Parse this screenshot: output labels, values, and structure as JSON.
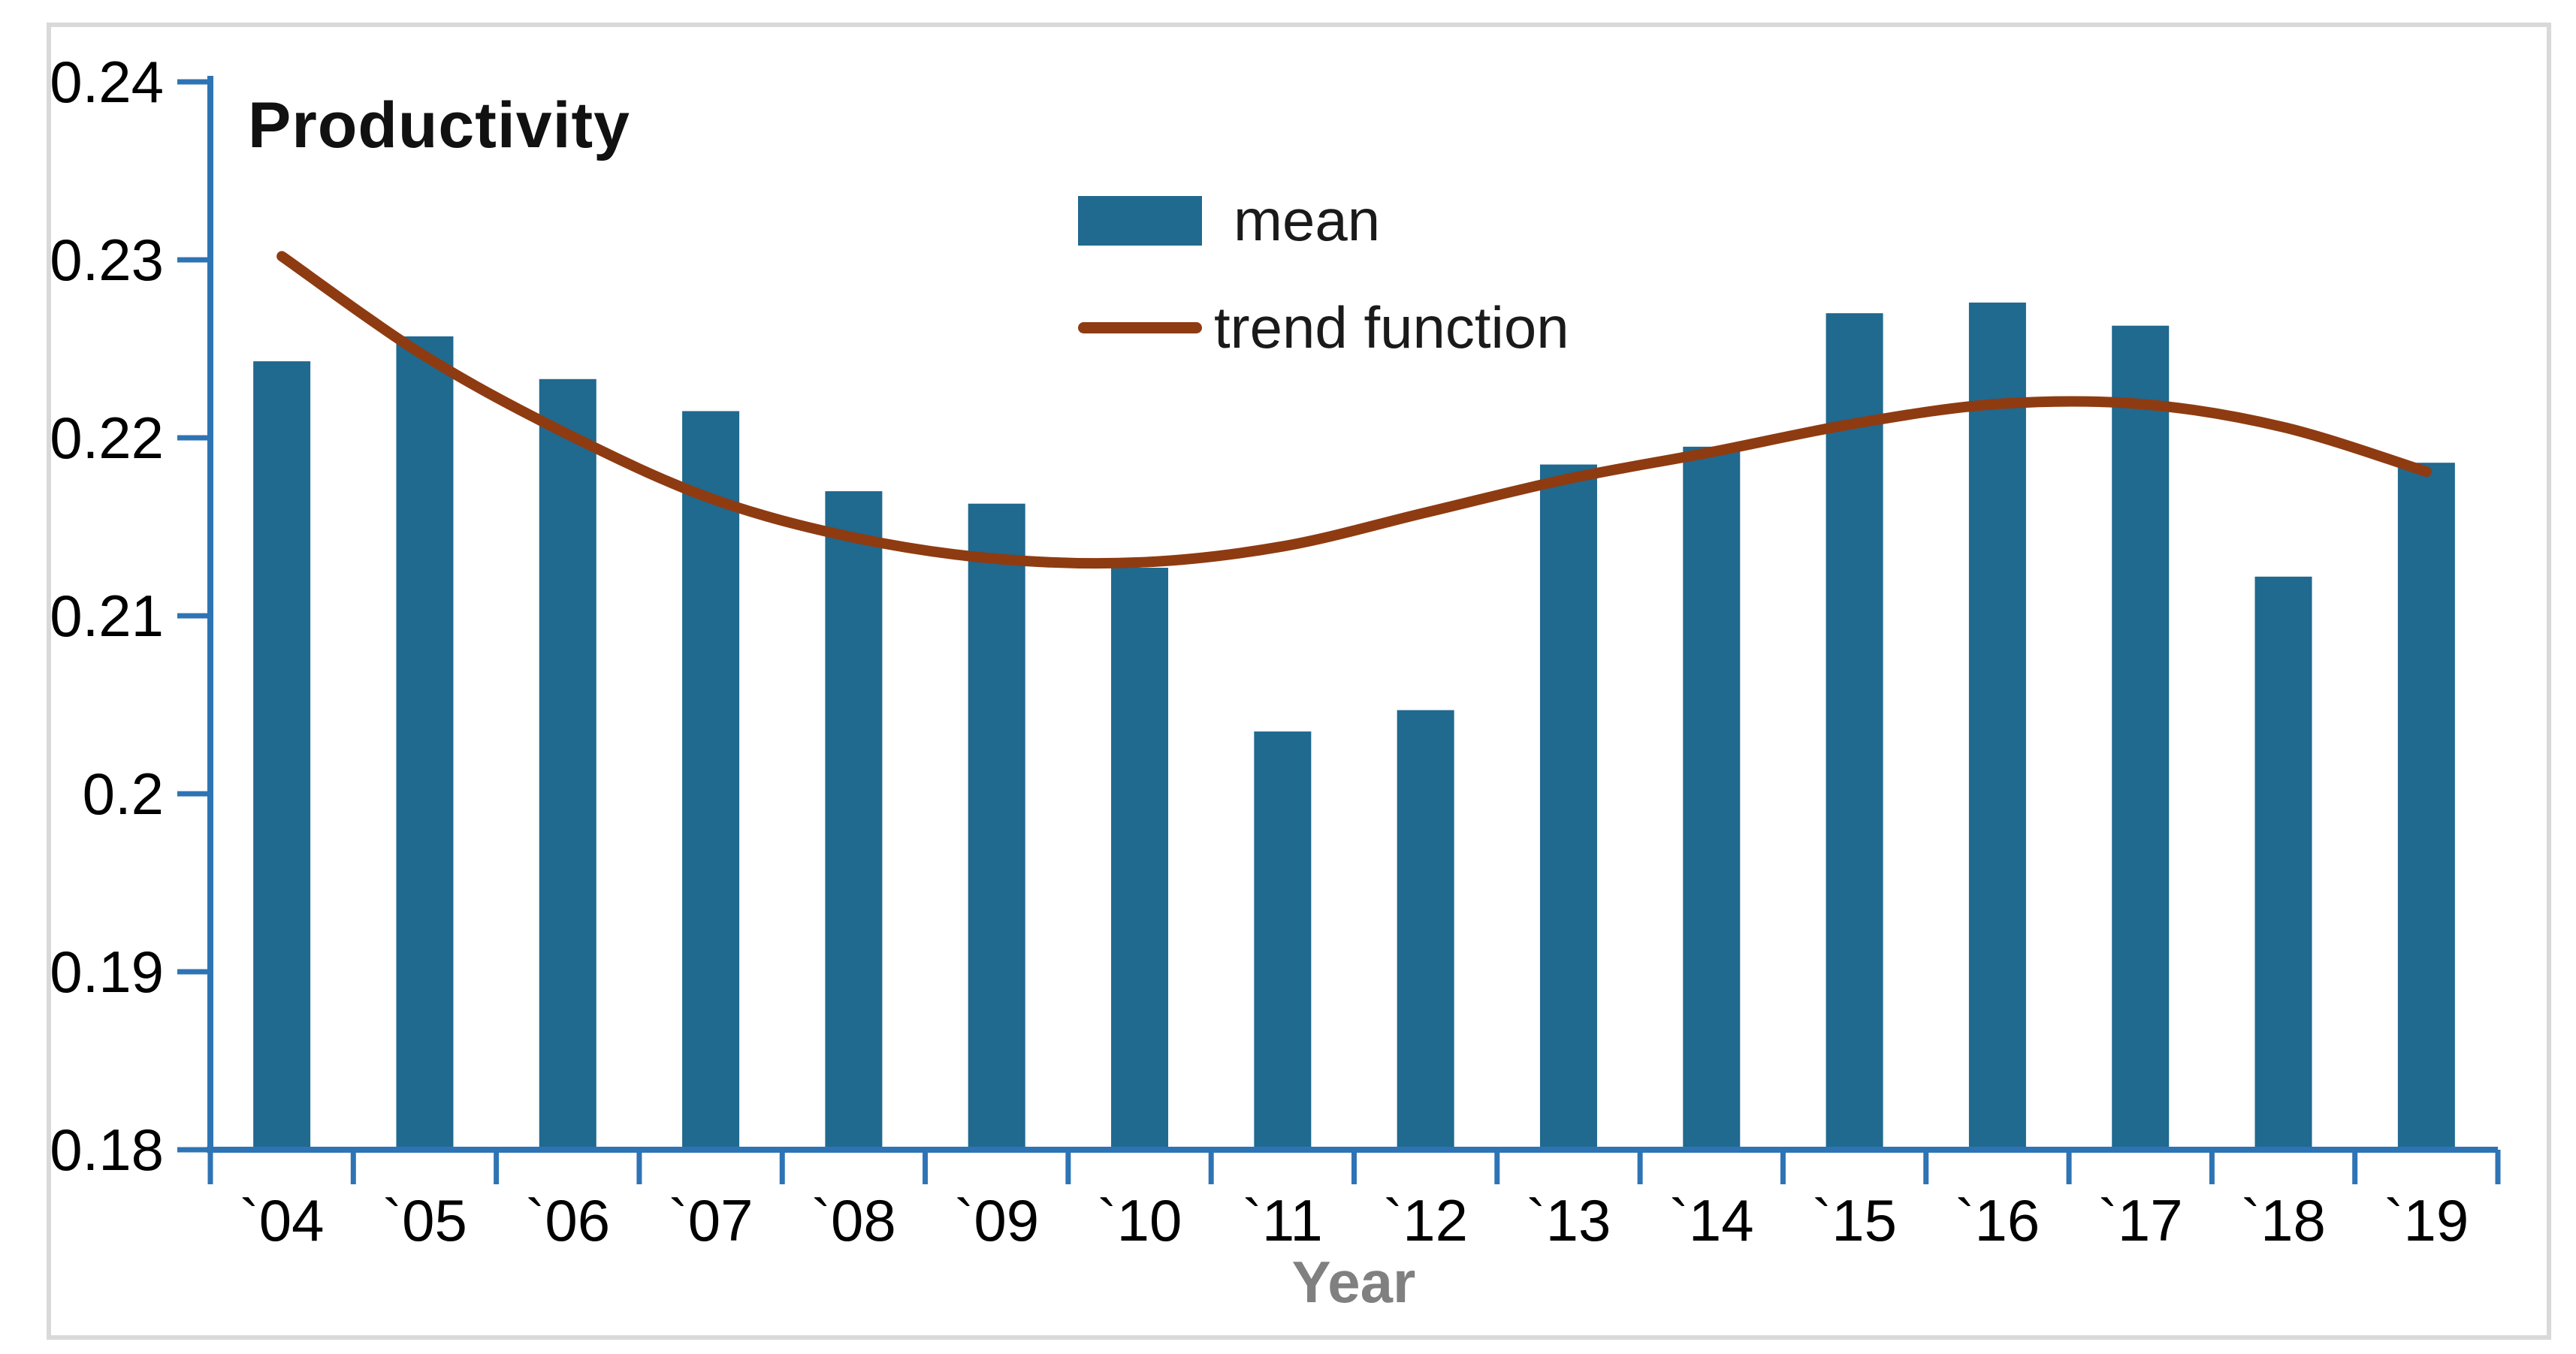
{
  "window": {
    "background": "#ffffff",
    "frame_border_color": "#d9d9d9"
  },
  "chart_data": {
    "type": "bar",
    "title": "Productivity",
    "xlabel": "Year",
    "ylabel": "",
    "categories": [
      "`04",
      "`05",
      "`06",
      "`07",
      "`08",
      "`09",
      "`10",
      "`11",
      "`12",
      "`13",
      "`14",
      "`15",
      "`16",
      "`17",
      "`18",
      "`19"
    ],
    "series": [
      {
        "name": "mean",
        "type": "bar",
        "color": "#20698F",
        "values": [
          0.2243,
          0.2257,
          0.2233,
          0.2215,
          0.217,
          0.2163,
          0.2127,
          0.2035,
          0.2047,
          0.2185,
          0.2195,
          0.227,
          0.2276,
          0.2263,
          0.2122,
          0.2186
        ]
      },
      {
        "name": "trend function",
        "type": "line",
        "color": "#8E3B12",
        "values": [
          0.2302,
          0.2246,
          0.2202,
          0.2166,
          0.2144,
          0.2132,
          0.213,
          0.2139,
          0.2158,
          0.2177,
          0.2192,
          0.2208,
          0.2219,
          0.2219,
          0.2206,
          0.2181
        ]
      }
    ],
    "ylim": [
      0.18,
      0.24
    ],
    "yticks": [
      0.18,
      0.19,
      0.2,
      0.21,
      0.22,
      0.23,
      0.24
    ],
    "ytick_labels": [
      "0.18",
      "0.19",
      "0.2",
      "0.21",
      "0.22",
      "0.23",
      "0.24"
    ],
    "grid": false,
    "legend_position": "top-center",
    "axis_color": "#2E74B5",
    "tick_label_color": "#000000",
    "xlabel_color": "#808080"
  }
}
